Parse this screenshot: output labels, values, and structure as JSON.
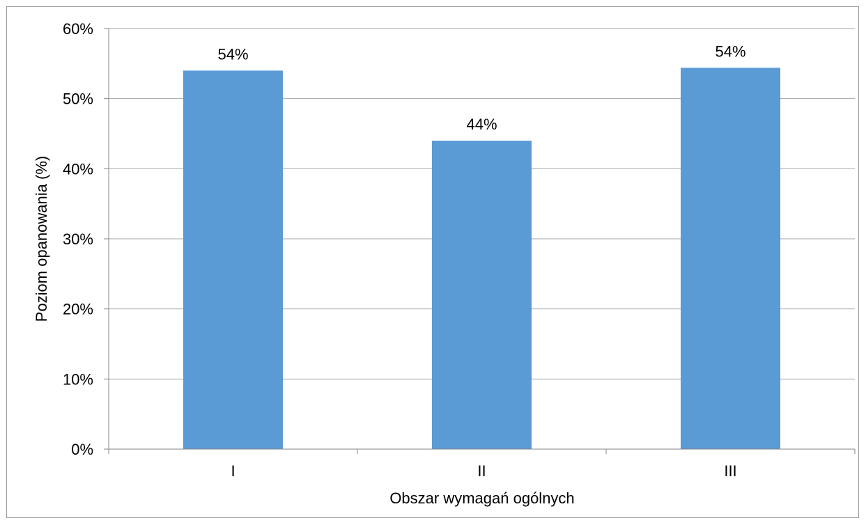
{
  "chart_data": {
    "type": "bar",
    "title": "",
    "xlabel": "Obszar wymagań ogólnych",
    "ylabel": "Poziom opanowania (%)",
    "categories": [
      "I",
      "II",
      "III"
    ],
    "values": [
      54,
      44,
      54.4
    ],
    "data_labels": [
      "54%",
      "44%",
      "54%"
    ],
    "ylim": [
      0,
      60
    ],
    "y_ticks": [
      0,
      10,
      20,
      30,
      40,
      50,
      60
    ],
    "y_tick_labels": [
      "0%",
      "10%",
      "20%",
      "30%",
      "40%",
      "50%",
      "60%"
    ],
    "grid": true,
    "legend": "none",
    "bar_color": "#5b9bd5",
    "gridline_color": "#a6a6a6",
    "axis_color": "#868686"
  }
}
